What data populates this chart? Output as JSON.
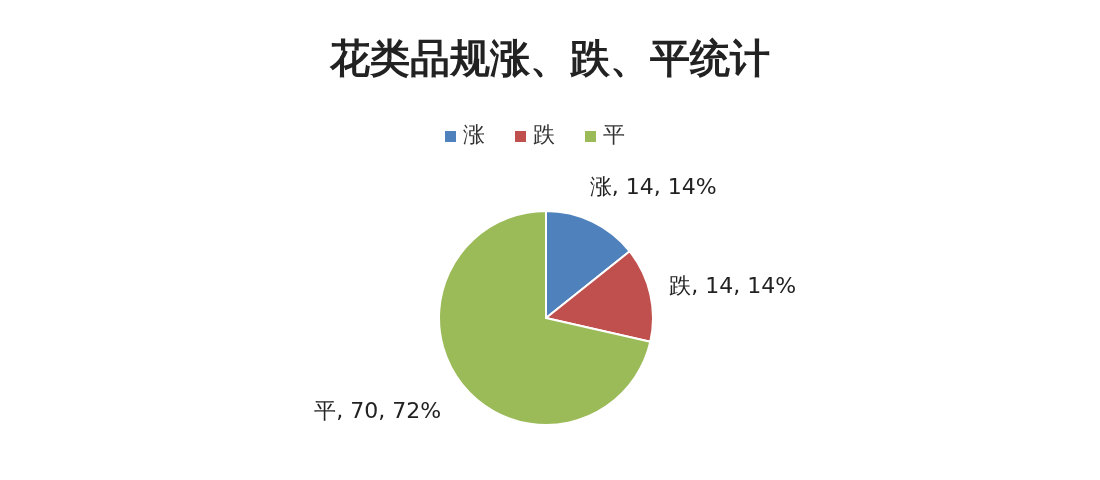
{
  "chart_data": {
    "type": "pie",
    "title": "花类品规涨、跌、平统计",
    "categories": [
      "涨",
      "跌",
      "平"
    ],
    "values": [
      14,
      14,
      70
    ],
    "colors": [
      "#4f81bd",
      "#c0504d",
      "#9bbb59"
    ],
    "value_labels": [
      "涨, 14, 14%",
      "跌, 14, 14%",
      "平, 70, 72%"
    ],
    "legend": "top"
  }
}
